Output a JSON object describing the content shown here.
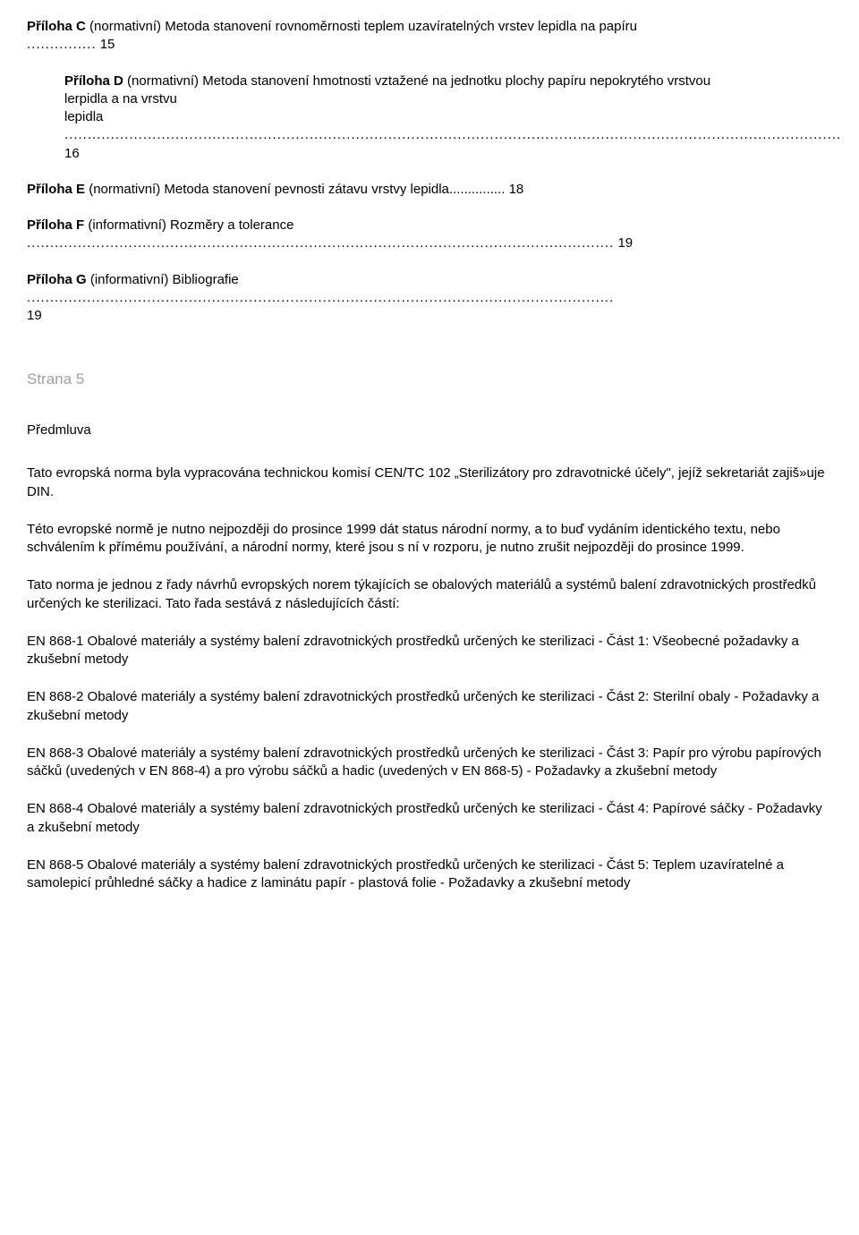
{
  "toc": {
    "c": {
      "prefix": "Příloha C",
      "rest": " (normativní) Metoda stanovení rovnoměrnosti teplem uzavíratelných vrstev lepidla na papíru",
      "page": "15"
    },
    "d": {
      "prefix": "Příloha D",
      "rest": " (normativní) Metoda stanovení hmotnosti vztažené na jednotku plochy papíru nepokrytého vrstvou",
      "line2": "lerpidla a na vrstvu",
      "line3": "lepidla",
      "page": "16"
    },
    "e": {
      "prefix": "Příloha E",
      "rest": " (normativní) Metoda stanovení pevnosti zátavu vrstvy lepidla",
      "page": "18"
    },
    "f": {
      "prefix": "Příloha F",
      "rest": " (informativní) Rozměry a tolerance",
      "page": "19"
    },
    "g": {
      "prefix": "Příloha G",
      "rest": " (informativní) Bibliografie",
      "page": "19"
    }
  },
  "strana": "Strana 5",
  "predmluvaTitle": "Předmluva",
  "p1": "Tato evropská norma byla vypracována technickou komisí CEN/TC 102 „Sterilizátory pro zdravotnické účely\", jejíž sekretariát zajiš»uje DIN.",
  "p2": "Této evropské normě je nutno nejpozději do prosince 1999 dát status národní normy, a to buď vydáním identického textu, nebo schválením k přímému používání, a národní normy, které jsou s ní v rozporu, je nutno zrušit nejpozději do prosince 1999.",
  "p3": "Tato norma je jednou z řady návrhů evropských norem týkajících se obalových materiálů a systémů balení zdravotnických prostředků určených ke sterilizaci. Tato řada sestává z následujících částí:",
  "p4": "EN 868-1 Obalové materiály a systémy balení zdravotnických prostředků určených ke sterilizaci - Část 1: Všeobecné požadavky a zkušební metody",
  "p5": "EN 868-2 Obalové materiály a systémy balení zdravotnických prostředků určených ke sterilizaci - Část 2: Sterilní obaly - Požadavky a zkušební metody",
  "p6": "EN 868-3 Obalové materiály a systémy balení zdravotnických prostředků určených ke sterilizaci - Část 3: Papír pro výrobu papírových sáčků (uvedených v EN 868-4) a pro výrobu sáčků a hadic (uvedených v EN 868-5) - Požadavky a zkušební metody",
  "p7": "EN 868-4 Obalové materiály a systémy balení zdravotnických prostředků určených ke sterilizaci - Část 4: Papírové sáčky - Požadavky a zkušební metody",
  "p8": "EN 868-5 Obalové materiály a systémy balení zdravotnických prostředků určených ke sterilizaci - Část 5: Teplem uzavíratelné a samolepicí průhledné sáčky a hadice z laminátu papír - plastová folie - Požadavky a zkušební metody",
  "dots": {
    "short": "...............",
    "long": "........................................................................................................................................................................",
    "mid": "..............................................................................................................................."
  }
}
